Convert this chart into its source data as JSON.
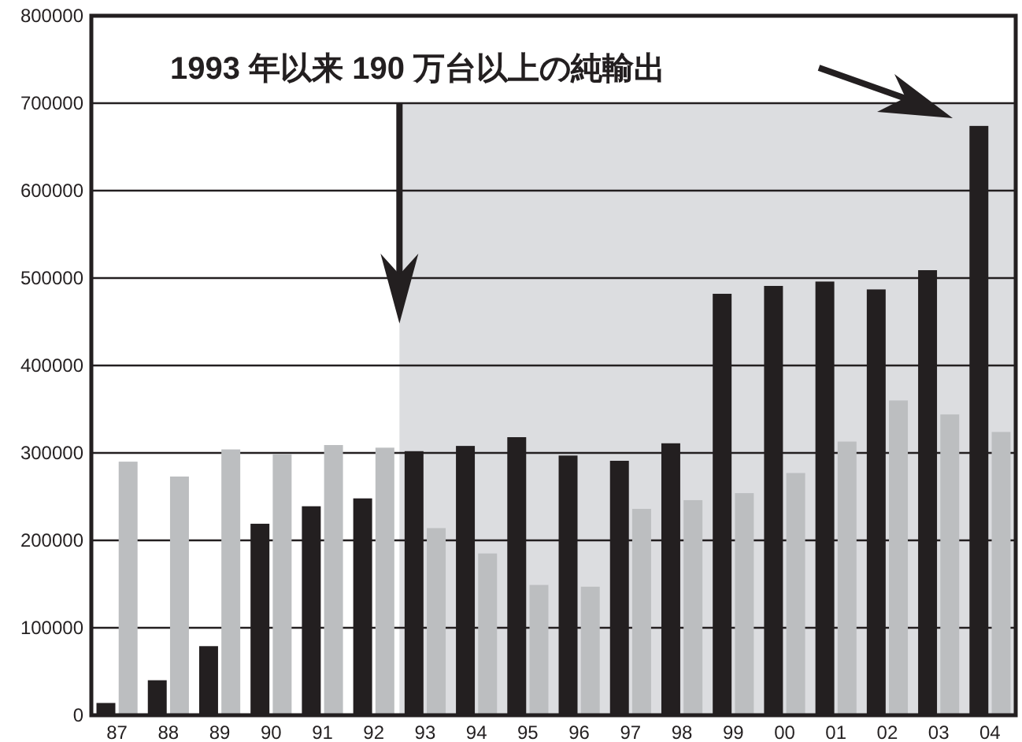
{
  "chart_data": {
    "type": "bar",
    "title": "1993 年以来 190 万台以上の純輸出",
    "categories": [
      "87",
      "88",
      "89",
      "90",
      "91",
      "92",
      "93",
      "94",
      "95",
      "96",
      "97",
      "98",
      "99",
      "00",
      "01",
      "02",
      "03",
      "04"
    ],
    "series": [
      {
        "color": "#231f20",
        "values": [
          14000,
          40000,
          79000,
          219000,
          239000,
          248000,
          302000,
          308000,
          318000,
          297000,
          291000,
          311000,
          482000,
          491000,
          496000,
          487000,
          509000,
          674000
        ]
      },
      {
        "color": "#bcbec0",
        "values": [
          290000,
          273000,
          304000,
          299000,
          309000,
          306000,
          214000,
          185000,
          149000,
          147000,
          236000,
          246000,
          254000,
          277000,
          313000,
          360000,
          344000,
          324000
        ]
      }
    ],
    "ylim": [
      0,
      800000
    ],
    "yticks": [
      0,
      100000,
      200000,
      300000,
      400000,
      500000,
      600000,
      700000,
      800000
    ],
    "bands": [
      {
        "axis": "x",
        "from": "93",
        "to": "04",
        "color": "#dcdde0"
      }
    ],
    "grid": "y"
  }
}
